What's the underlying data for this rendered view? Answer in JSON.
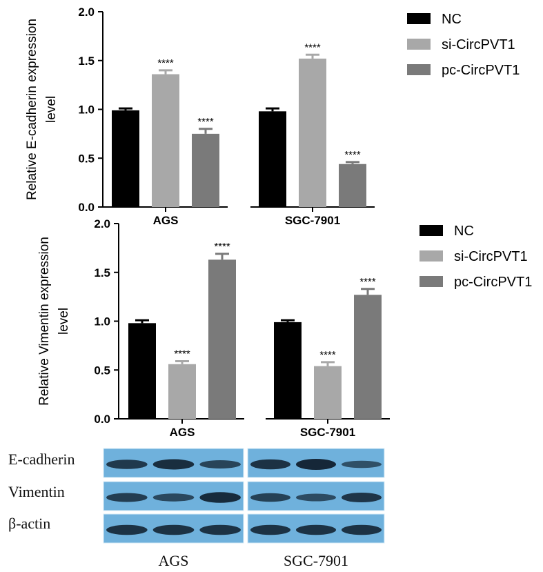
{
  "chart_data": [
    {
      "type": "bar",
      "ylabel": [
        "Relative E-cadherin expression",
        "level"
      ],
      "ylim": [
        0,
        2.0
      ],
      "yticks": [
        "0.0",
        "0.5",
        "1.0",
        "1.5",
        "2.0"
      ],
      "categories": [
        "AGS",
        "SGC-7901"
      ],
      "series": [
        {
          "name": "NC",
          "color": "#000000",
          "values": [
            0.99,
            0.98
          ],
          "errors": [
            0.02,
            0.03
          ],
          "marks": [
            "",
            ""
          ]
        },
        {
          "name": "si-CircPVT1",
          "color": "#a8a8a8",
          "values": [
            1.36,
            1.52
          ],
          "errors": [
            0.04,
            0.04
          ],
          "marks": [
            "****",
            "****"
          ]
        },
        {
          "name": "pc-CircPVT1",
          "color": "#7a7a7a",
          "values": [
            0.75,
            0.44
          ],
          "errors": [
            0.05,
            0.02
          ],
          "marks": [
            "****",
            "****"
          ]
        }
      ],
      "legend": "top-right"
    },
    {
      "type": "bar",
      "ylabel": [
        "Relative Vimentin expression",
        "level"
      ],
      "ylim": [
        0,
        2.0
      ],
      "yticks": [
        "0.0",
        "0.5",
        "1.0",
        "1.5",
        "2.0"
      ],
      "categories": [
        "AGS",
        "SGC-7901"
      ],
      "series": [
        {
          "name": "NC",
          "color": "#000000",
          "values": [
            0.98,
            0.99
          ],
          "errors": [
            0.03,
            0.02
          ],
          "marks": [
            "",
            ""
          ]
        },
        {
          "name": "si-CircPVT1",
          "color": "#a8a8a8",
          "values": [
            0.56,
            0.54
          ],
          "errors": [
            0.03,
            0.04
          ],
          "marks": [
            "****",
            "****"
          ]
        },
        {
          "name": "pc-CircPVT1",
          "color": "#7a7a7a",
          "values": [
            1.63,
            1.27
          ],
          "errors": [
            0.06,
            0.06
          ],
          "marks": [
            "****",
            "****"
          ]
        }
      ],
      "legend": "top-right"
    }
  ],
  "western_blot": {
    "rows": [
      "E-cadherin",
      "Vimentin",
      "β-actin"
    ],
    "groups": [
      "AGS",
      "SGC-7901"
    ],
    "band_intensity": [
      [
        0.75,
        0.9,
        0.6,
        0.85,
        1.0,
        0.45
      ],
      [
        0.7,
        0.55,
        0.95,
        0.65,
        0.5,
        0.8
      ],
      [
        0.85,
        0.85,
        0.85,
        0.85,
        0.85,
        0.85
      ]
    ],
    "background": "#6fb1dc",
    "band_color": "#10202e"
  }
}
